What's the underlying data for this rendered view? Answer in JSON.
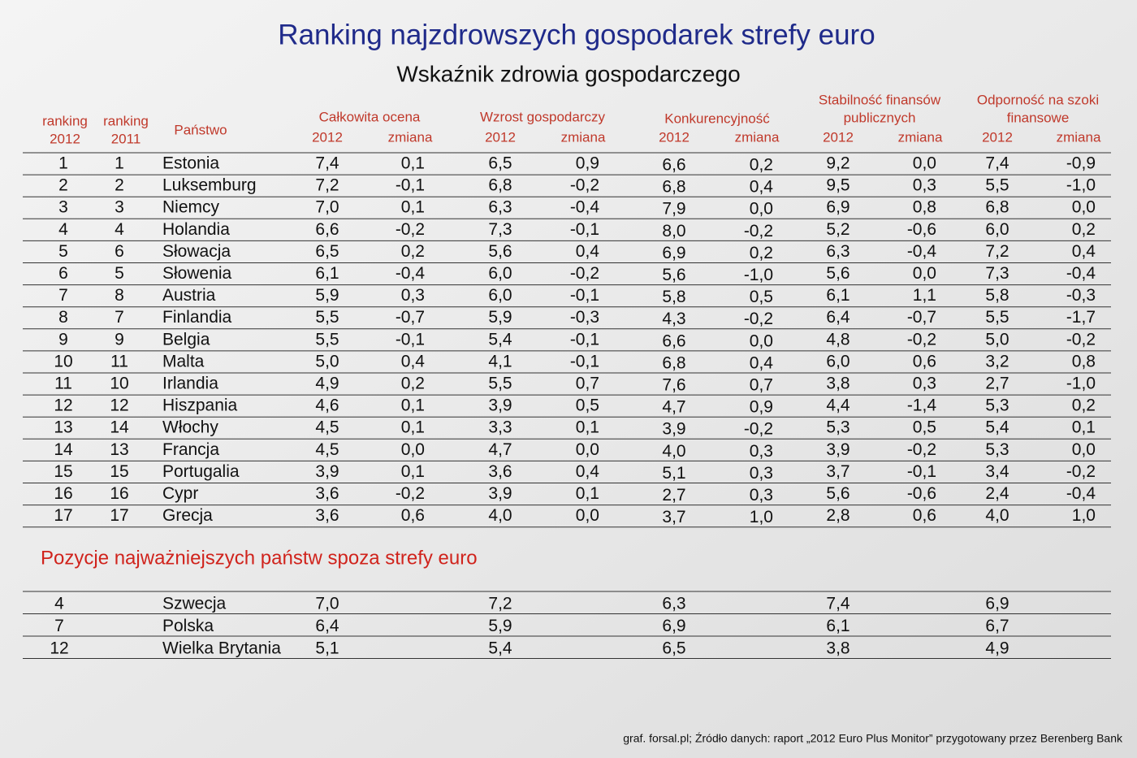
{
  "title": "Ranking najzdrowszych gospodarek strefy euro",
  "subtitle": "Wskaźnik zdrowia gospodarczego",
  "table": {
    "col_heads": [
      [
        "ranking",
        "2012"
      ],
      [
        "ranking",
        "2011"
      ],
      [
        "Państwo"
      ]
    ],
    "groups": [
      {
        "lines": [
          "Całkowita ocena"
        ],
        "sub": [
          "2012",
          "zmiana"
        ]
      },
      {
        "lines": [
          "Wzrost gospodarczy"
        ],
        "sub": [
          "2012",
          "zmiana"
        ]
      },
      {
        "lines": [
          "Konkurencyjność"
        ],
        "sub": [
          "2012",
          "zmiana"
        ]
      },
      {
        "lines": [
          "Stabilność finansów",
          "publicznych"
        ],
        "sub": [
          "2012",
          "zmiana"
        ]
      },
      {
        "lines": [
          "Odporność na szoki",
          "finansowe"
        ],
        "sub": [
          "2012",
          "zmiana"
        ]
      }
    ],
    "rows": [
      [
        "1",
        "1",
        "Estonia",
        "7,4",
        "0,1",
        "6,5",
        "0,9",
        "6,6",
        "0,2",
        "9,2",
        "0,0",
        "7,4",
        "-0,9"
      ],
      [
        "2",
        "2",
        "Luksemburg",
        "7,2",
        "-0,1",
        "6,8",
        "-0,2",
        "6,8",
        "0,4",
        "9,5",
        "0,3",
        "5,5",
        "-1,0"
      ],
      [
        "3",
        "3",
        "Niemcy",
        "7,0",
        "0,1",
        "6,3",
        "-0,4",
        "7,9",
        "0,0",
        "6,9",
        "0,8",
        "6,8",
        "0,0"
      ],
      [
        "4",
        "4",
        "Holandia",
        "6,6",
        "-0,2",
        "7,3",
        "-0,1",
        "8,0",
        "-0,2",
        "5,2",
        "-0,6",
        "6,0",
        "0,2"
      ],
      [
        "5",
        "6",
        "Słowacja",
        "6,5",
        "0,2",
        "5,6",
        "0,4",
        "6,9",
        "0,2",
        "6,3",
        "-0,4",
        "7,2",
        "0,4"
      ],
      [
        "6",
        "5",
        "Słowenia",
        "6,1",
        "-0,4",
        "6,0",
        "-0,2",
        "5,6",
        "-1,0",
        "5,6",
        "0,0",
        "7,3",
        "-0,4"
      ],
      [
        "7",
        "8",
        "Austria",
        "5,9",
        "0,3",
        "6,0",
        "-0,1",
        "5,8",
        "0,5",
        "6,1",
        "1,1",
        "5,8",
        "-0,3"
      ],
      [
        "8",
        "7",
        "Finlandia",
        "5,5",
        "-0,7",
        "5,9",
        "-0,3",
        "4,3",
        "-0,2",
        "6,4",
        "-0,7",
        "5,5",
        "-1,7"
      ],
      [
        "9",
        "9",
        "Belgia",
        "5,5",
        "-0,1",
        "5,4",
        "-0,1",
        "6,6",
        "0,0",
        "4,8",
        "-0,2",
        "5,0",
        "-0,2"
      ],
      [
        "10",
        "11",
        "Malta",
        "5,0",
        "0,4",
        "4,1",
        "-0,1",
        "6,8",
        "0,4",
        "6,0",
        "0,6",
        "3,2",
        "0,8"
      ],
      [
        "11",
        "10",
        "Irlandia",
        "4,9",
        "0,2",
        "5,5",
        "0,7",
        "7,6",
        "0,7",
        "3,8",
        "0,3",
        "2,7",
        "-1,0"
      ],
      [
        "12",
        "12",
        "Hiszpania",
        "4,6",
        "0,1",
        "3,9",
        "0,5",
        "4,7",
        "0,9",
        "4,4",
        "-1,4",
        "5,3",
        "0,2"
      ],
      [
        "13",
        "14",
        "Włochy",
        "4,5",
        "0,1",
        "3,3",
        "0,1",
        "3,9",
        "-0,2",
        "5,3",
        "0,5",
        "5,4",
        "0,1"
      ],
      [
        "14",
        "13",
        "Francja",
        "4,5",
        "0,0",
        "4,7",
        "0,0",
        "4,0",
        "0,3",
        "3,9",
        "-0,2",
        "5,3",
        "0,0"
      ],
      [
        "15",
        "15",
        "Portugalia",
        "3,9",
        "0,1",
        "3,6",
        "0,4",
        "5,1",
        "0,3",
        "3,7",
        "-0,1",
        "3,4",
        "-0,2"
      ],
      [
        "16",
        "16",
        "Cypr",
        "3,6",
        "-0,2",
        "3,9",
        "0,1",
        "2,7",
        "0,3",
        "5,6",
        "-0,6",
        "2,4",
        "-0,4"
      ],
      [
        "17",
        "17",
        "Grecja",
        "3,6",
        "0,6",
        "4,0",
        "0,0",
        "3,7",
        "1,0",
        "2,8",
        "0,6",
        "4,0",
        "1,0"
      ]
    ]
  },
  "section2": {
    "title": "Pozycje najważniejszych państw spoza strefy euro",
    "rows": [
      [
        "4",
        "Szwecja",
        "7,0",
        "7,2",
        "6,3",
        "7,4",
        "6,9"
      ],
      [
        "7",
        "Polska",
        "6,4",
        "5,9",
        "6,9",
        "6,1",
        "6,7"
      ],
      [
        "12",
        "Wielka Brytania",
        "5,1",
        "5,4",
        "6,5",
        "3,8",
        "4,9"
      ]
    ]
  },
  "footer": "graf. forsal.pl; Źródło danych: raport „2012 Euro Plus Monitor” przygotowany przez Berenberg Bank"
}
